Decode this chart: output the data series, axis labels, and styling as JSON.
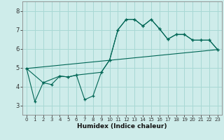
{
  "background_color": "#ceecea",
  "grid_color": "#a8d8d4",
  "line_color": "#006655",
  "xlabel": "Humidex (Indice chaleur)",
  "xlim": [
    -0.5,
    23.5
  ],
  "ylim": [
    2.5,
    8.5
  ],
  "yticks": [
    3,
    4,
    5,
    6,
    7,
    8
  ],
  "xticks": [
    0,
    1,
    2,
    3,
    4,
    5,
    6,
    7,
    8,
    9,
    10,
    11,
    12,
    13,
    14,
    15,
    16,
    17,
    18,
    19,
    20,
    21,
    22,
    23
  ],
  "series": [
    {
      "x": [
        0,
        1,
        2,
        3,
        4,
        5,
        6,
        7,
        8,
        9,
        10,
        11,
        12,
        13,
        14,
        15,
        16,
        17,
        18,
        19,
        20,
        21,
        22,
        23
      ],
      "y": [
        4.95,
        3.2,
        4.2,
        4.1,
        4.55,
        4.5,
        4.6,
        3.3,
        3.5,
        4.75,
        5.4,
        7.0,
        7.55,
        7.55,
        7.2,
        7.55,
        7.05,
        6.5,
        6.75,
        6.75,
        6.45,
        6.45,
        6.45,
        5.95
      ],
      "marker": true,
      "linestyle": "-"
    },
    {
      "x": [
        0,
        2,
        4,
        5,
        6,
        9,
        10,
        11,
        12,
        13,
        14,
        15,
        16,
        17,
        18,
        19,
        20,
        21,
        22,
        23
      ],
      "y": [
        4.95,
        4.2,
        4.55,
        4.5,
        4.6,
        4.75,
        5.4,
        7.0,
        7.55,
        7.55,
        7.2,
        7.55,
        7.05,
        6.5,
        6.75,
        6.75,
        6.45,
        6.45,
        6.45,
        5.95
      ],
      "marker": true,
      "linestyle": "-"
    },
    {
      "x": [
        0,
        23
      ],
      "y": [
        4.95,
        5.95
      ],
      "marker": false,
      "linestyle": "-"
    }
  ]
}
